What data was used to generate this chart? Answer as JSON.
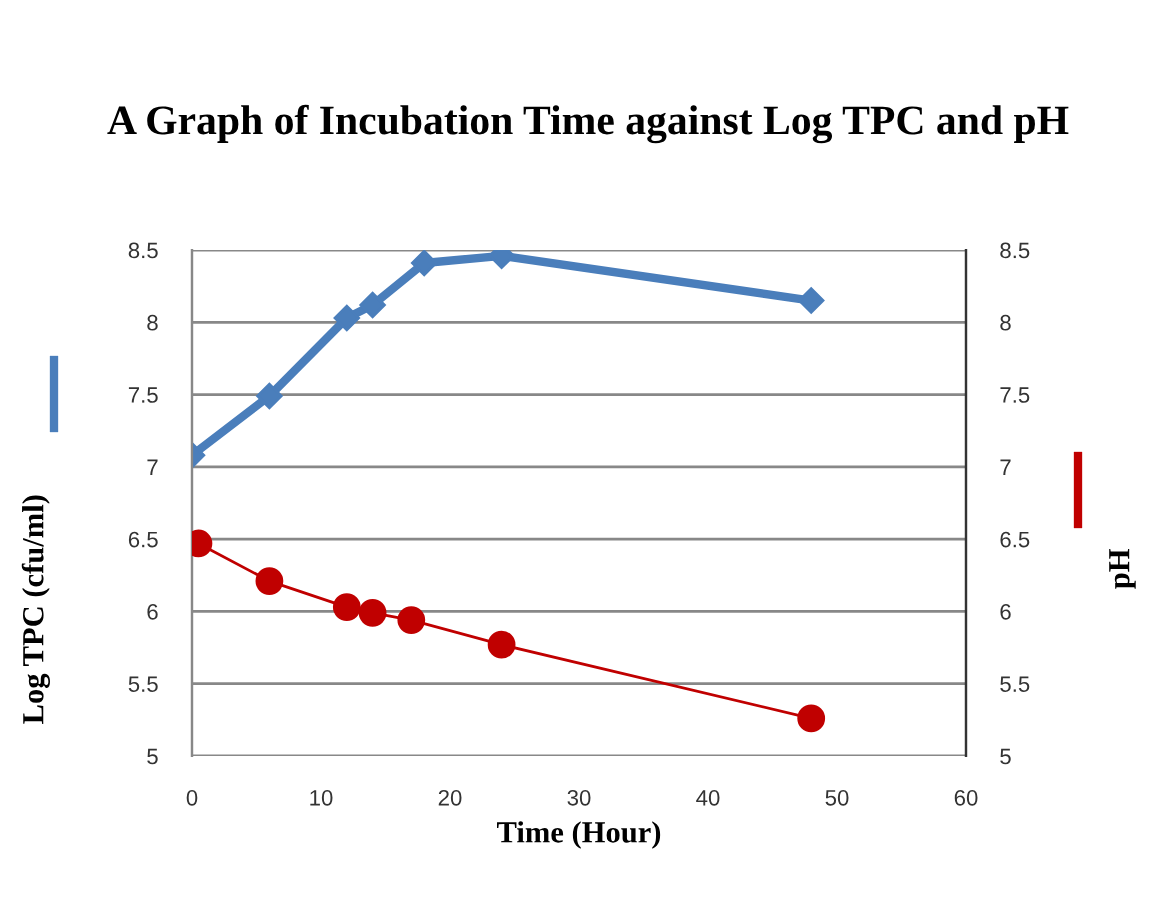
{
  "chart_data": {
    "type": "line",
    "title": "A Graph of Incubation Time against Log TPC and pH",
    "xlabel": "Time (Hour)",
    "ylabel": "Log TPC (cfu/ml)",
    "y2label": "pH",
    "xlim": [
      0,
      60
    ],
    "xticks": [
      0,
      10,
      20,
      30,
      40,
      50,
      60
    ],
    "ylim": [
      5,
      8.5
    ],
    "yticks": [
      5,
      5.5,
      6,
      6.5,
      7,
      7.5,
      8,
      8.5
    ],
    "y2lim": [
      5,
      8.5
    ],
    "y2ticks": [
      5,
      5.5,
      6,
      6.5,
      7,
      7.5,
      8,
      8.5
    ],
    "grid": "y",
    "legend": false,
    "series": [
      {
        "color": "#4a7ebb",
        "marker": "diamond",
        "x": [
          0,
          6,
          12,
          14,
          18,
          24,
          48
        ],
        "values": [
          7.08,
          7.49,
          8.03,
          8.12,
          8.41,
          8.46,
          8.15
        ]
      },
      {
        "color": "#c00000",
        "marker": "circle",
        "axis": "y2",
        "x": [
          0.5,
          6,
          12,
          14,
          17,
          24,
          48
        ],
        "values": [
          6.47,
          6.21,
          6.03,
          5.99,
          5.94,
          5.77,
          5.26
        ]
      }
    ]
  }
}
